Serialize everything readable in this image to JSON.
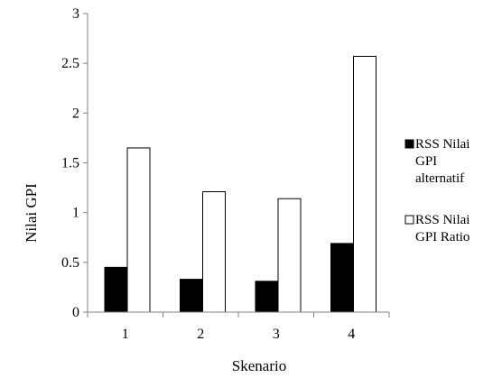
{
  "chart_data": {
    "type": "bar",
    "categories": [
      "1",
      "2",
      "3",
      "4"
    ],
    "series": [
      {
        "name": "RSS Nilai GPI alternatif",
        "values": [
          0.45,
          0.33,
          0.31,
          0.69
        ],
        "color": "#000000"
      },
      {
        "name": "RSS Nilai GPI Ratio",
        "values": [
          1.65,
          1.21,
          1.14,
          2.57
        ],
        "color": "#ffffff"
      }
    ],
    "title": "",
    "xlabel": "Skenario",
    "ylabel": "Nilai GPI",
    "ylim": [
      0,
      3
    ],
    "yticks": [
      0,
      0.5,
      1,
      1.5,
      2,
      2.5,
      3
    ],
    "ytick_labels": [
      "0",
      "0.5",
      "1",
      "1.5",
      "2",
      "2.5",
      "3"
    ],
    "grid": false,
    "legend_position": "right",
    "legend_lines": [
      [
        "RSS Nilai",
        "GPI",
        "alternatif"
      ],
      [
        "RSS Nilai",
        "GPI Ratio"
      ]
    ]
  }
}
